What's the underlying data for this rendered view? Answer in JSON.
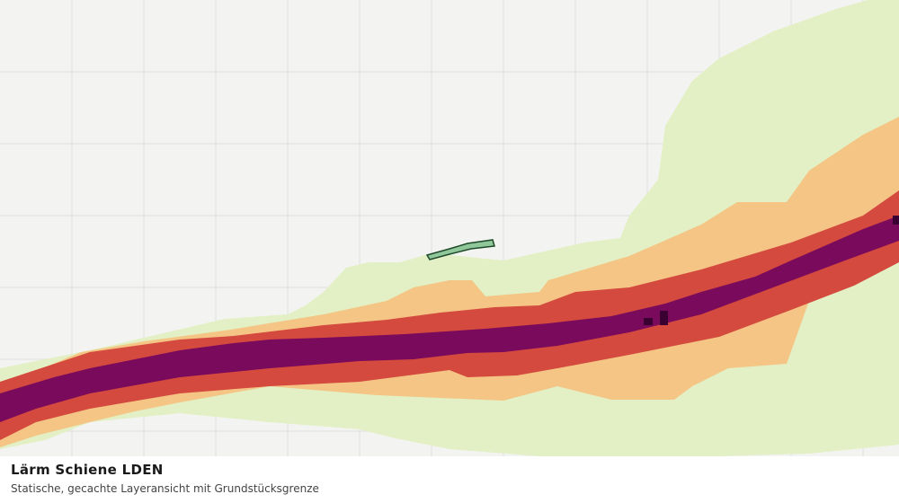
{
  "map": {
    "title": "Lärm Schiene LDEN",
    "subtitle": "Statische, gecachte Layeransicht mit Grundstücksgrenze"
  }
}
